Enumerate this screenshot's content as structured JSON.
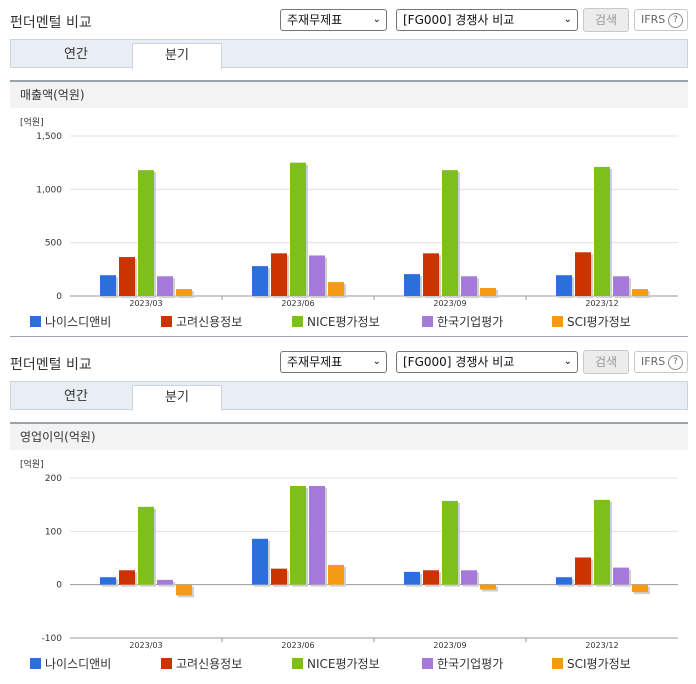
{
  "common": {
    "title": "펀더멘털 비교",
    "select_topic": "주재무제표",
    "select_compare": "[FG000] 경쟁사 비교",
    "search_label": "검색",
    "ifrs_label": "IFRS",
    "ifrs_help": "?",
    "tab_annual": "연간",
    "tab_quarter": "분기",
    "active_tab": "분기"
  },
  "colors": {
    "나이스디앤비": "#2a6fdb",
    "고려신용정보": "#cc3300",
    "NICE평가정보": "#7fbf1c",
    "한국기업평가": "#a57ad9",
    "SCI평가정보": "#f49a15"
  },
  "chart_data": [
    {
      "type": "bar",
      "title": "매출액(억원)",
      "unit_label": "[억원]",
      "categories": [
        "2023/03",
        "2023/06",
        "2023/09",
        "2023/12"
      ],
      "yticks": [
        "1,500",
        "1,000",
        "500",
        "0"
      ],
      "ylim": [
        0,
        1500
      ],
      "grid": true,
      "legend_position": "bottom",
      "series": [
        {
          "name": "나이스디앤비",
          "values": [
            195,
            280,
            205,
            195
          ]
        },
        {
          "name": "고려신용정보",
          "values": [
            365,
            400,
            400,
            410
          ]
        },
        {
          "name": "NICE평가정보",
          "values": [
            1180,
            1250,
            1180,
            1210
          ]
        },
        {
          "name": "한국기업평가",
          "values": [
            185,
            380,
            185,
            185
          ]
        },
        {
          "name": "SCI평가정보",
          "values": [
            65,
            130,
            75,
            65
          ]
        }
      ]
    },
    {
      "type": "bar",
      "title": "영업이익(억원)",
      "unit_label": "[억원]",
      "categories": [
        "2023/03",
        "2023/06",
        "2023/09",
        "2023/12"
      ],
      "yticks": [
        "200",
        "100",
        "0",
        "-100"
      ],
      "ylim": [
        -100,
        200
      ],
      "grid": true,
      "legend_position": "bottom",
      "series": [
        {
          "name": "나이스디앤비",
          "values": [
            14,
            86,
            24,
            14
          ]
        },
        {
          "name": "고려신용정보",
          "values": [
            27,
            30,
            27,
            51
          ]
        },
        {
          "name": "NICE평가정보",
          "values": [
            146,
            185,
            157,
            159
          ]
        },
        {
          "name": "한국기업평가",
          "values": [
            9,
            185,
            27,
            32
          ]
        },
        {
          "name": "SCI평가정보",
          "values": [
            -20,
            37,
            -9,
            -14
          ]
        }
      ]
    }
  ]
}
